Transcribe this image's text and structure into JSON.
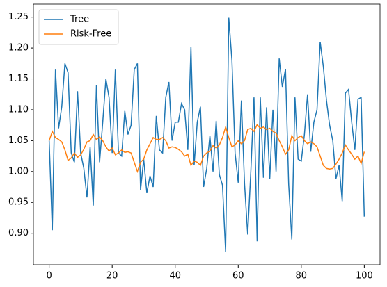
{
  "chart_data": {
    "type": "line",
    "x": [
      0,
      1,
      2,
      3,
      4,
      5,
      6,
      7,
      8,
      9,
      10,
      11,
      12,
      13,
      14,
      15,
      16,
      17,
      18,
      19,
      20,
      21,
      22,
      23,
      24,
      25,
      26,
      27,
      28,
      29,
      30,
      31,
      32,
      33,
      34,
      35,
      36,
      37,
      38,
      39,
      40,
      41,
      42,
      43,
      44,
      45,
      46,
      47,
      48,
      49,
      50,
      51,
      52,
      53,
      54,
      55,
      56,
      57,
      58,
      59,
      60,
      61,
      62,
      63,
      64,
      65,
      66,
      67,
      68,
      69,
      70,
      71,
      72,
      73,
      74,
      75,
      76,
      77,
      78,
      79,
      80,
      81,
      82,
      83,
      84,
      85,
      86,
      87,
      88,
      89,
      90,
      91,
      92,
      93,
      94,
      95,
      96,
      97,
      98,
      99,
      100
    ],
    "series": [
      {
        "name": "Tree",
        "color": "#1f77b4",
        "values": [
          1.05,
          0.905,
          1.165,
          1.07,
          1.105,
          1.175,
          1.16,
          1.03,
          1.015,
          1.13,
          1.03,
          1.005,
          0.958,
          1.04,
          0.945,
          1.14,
          1.015,
          1.08,
          1.15,
          1.12,
          1.03,
          1.165,
          1.03,
          1.025,
          1.098,
          1.06,
          1.075,
          1.165,
          1.175,
          0.97,
          1.02,
          0.965,
          0.993,
          0.975,
          1.09,
          1.035,
          1.03,
          1.12,
          1.145,
          1.05,
          1.08,
          1.08,
          1.11,
          1.1,
          1.035,
          1.202,
          1.01,
          1.08,
          1.105,
          0.975,
          1.005,
          1.058,
          1.0,
          1.082,
          0.995,
          0.978,
          0.87,
          1.249,
          1.18,
          1.03,
          0.982,
          1.115,
          0.98,
          0.898,
          1.0,
          1.12,
          0.887,
          1.12,
          0.99,
          1.104,
          0.988,
          1.1,
          1.0,
          1.183,
          1.137,
          1.166,
          0.98,
          0.89,
          1.12,
          1.02,
          1.017,
          1.06,
          1.125,
          1.032,
          1.08,
          1.1,
          1.21,
          1.17,
          1.115,
          1.075,
          1.05,
          0.988,
          1.01,
          0.952,
          1.127,
          1.133,
          1.08,
          1.035,
          1.117,
          1.12,
          0.927
        ]
      },
      {
        "name": "Risk-Free",
        "color": "#ff7f0e",
        "values": [
          1.05,
          1.065,
          1.055,
          1.052,
          1.048,
          1.035,
          1.018,
          1.022,
          1.03,
          1.023,
          1.027,
          1.036,
          1.048,
          1.05,
          1.06,
          1.052,
          1.056,
          1.05,
          1.04,
          1.033,
          1.038,
          1.027,
          1.03,
          1.035,
          1.031,
          1.032,
          1.03,
          1.015,
          1.0,
          1.015,
          1.02,
          1.035,
          1.045,
          1.055,
          1.052,
          1.052,
          1.055,
          1.05,
          1.038,
          1.04,
          1.039,
          1.036,
          1.032,
          1.025,
          1.028,
          1.01,
          1.017,
          1.015,
          1.01,
          1.025,
          1.03,
          1.033,
          1.042,
          1.038,
          1.043,
          1.055,
          1.072,
          1.055,
          1.04,
          1.043,
          1.05,
          1.045,
          1.05,
          1.068,
          1.07,
          1.065,
          1.076,
          1.07,
          1.072,
          1.068,
          1.07,
          1.065,
          1.062,
          1.05,
          1.04,
          1.028,
          1.035,
          1.058,
          1.05,
          1.055,
          1.058,
          1.05,
          1.045,
          1.048,
          1.045,
          1.04,
          1.025,
          1.01,
          1.005,
          1.004,
          1.005,
          1.012,
          1.02,
          1.03,
          1.043,
          1.035,
          1.028,
          1.02,
          1.025,
          1.013,
          1.032
        ]
      }
    ],
    "xlim": [
      -5,
      105
    ],
    "xticks": [
      0,
      20,
      40,
      60,
      80,
      100
    ],
    "ylim": [
      0.849,
      1.271
    ],
    "yticks": [
      {
        "value": 0.9,
        "label": "0.90"
      },
      0.95,
      {
        "value": 1.0,
        "label": "1.00"
      },
      1.05,
      {
        "value": 1.1,
        "label": "1.10"
      },
      1.15,
      {
        "value": 1.2,
        "label": "1.20"
      },
      1.25
    ],
    "grid": false,
    "legend": "upper left"
  }
}
